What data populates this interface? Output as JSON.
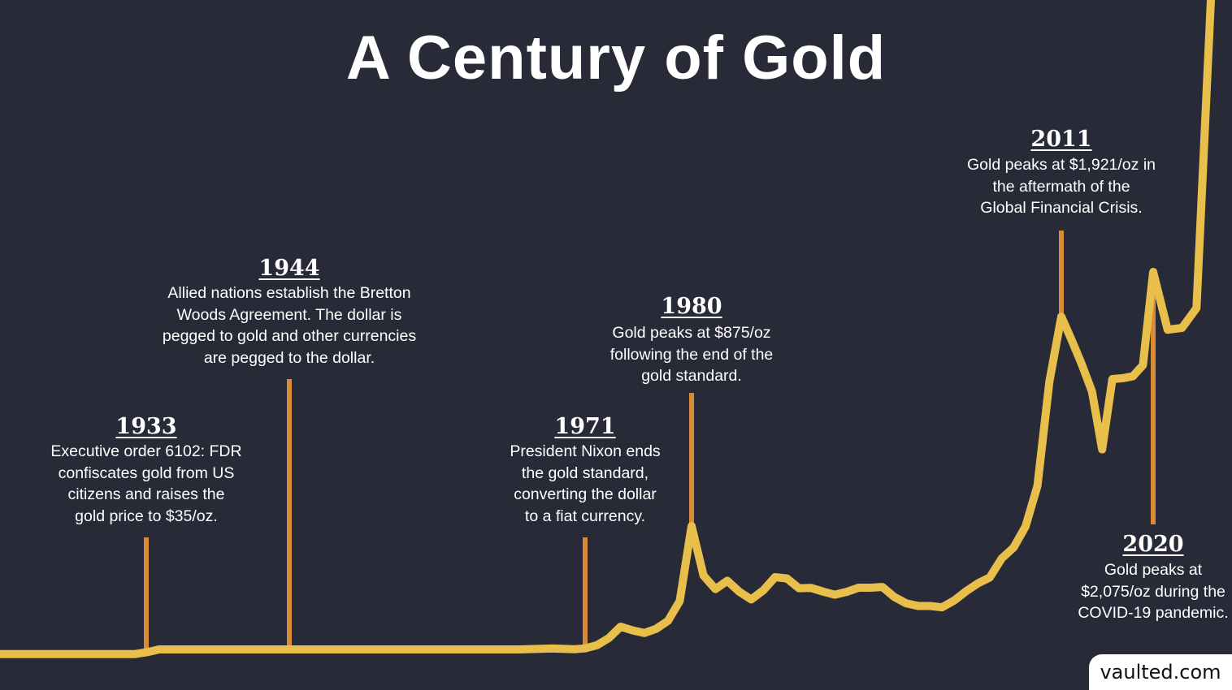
{
  "title": "A Century of Gold",
  "brand": "vaulted.com",
  "colors": {
    "background": "#282a37",
    "line": "#e8bf4a",
    "marker": "#d98a36",
    "text": "#ffffff"
  },
  "annotations": [
    {
      "year": "1933",
      "lines": [
        "Executive order 6102: FDR",
        "confiscates gold from US",
        "citizens and raises the",
        "gold price to $35/oz."
      ]
    },
    {
      "year": "1944",
      "lines": [
        "Allied nations establish the Bretton",
        "Woods Agreement. The dollar is",
        "pegged to gold and other currencies",
        "are pegged to the dollar."
      ]
    },
    {
      "year": "1971",
      "lines": [
        "President Nixon ends",
        "the gold standard,",
        "converting the dollar",
        "to a fiat currency."
      ]
    },
    {
      "year": "1980",
      "lines": [
        "Gold peaks at $875/oz",
        "following the end of the",
        "gold standard."
      ]
    },
    {
      "year": "2011",
      "lines": [
        "Gold peaks at $1,921/oz in",
        "the aftermath of the",
        "Global Financial Crisis."
      ]
    },
    {
      "year": "2020",
      "lines": [
        "Gold peaks at",
        "$2,075/oz during the",
        "COVID-19 pandemic."
      ]
    }
  ],
  "chart_data": {
    "type": "line",
    "title": "A Century of Gold",
    "xlabel": "",
    "ylabel": "",
    "unit": "USD/oz",
    "grid": false,
    "legend": "none",
    "series": [
      {
        "x": [
          1920,
          1932,
          1933,
          1934,
          1940,
          1944,
          1950,
          1960,
          1965,
          1968,
          1970,
          1971,
          1972,
          1973,
          1974,
          1975,
          1976,
          1977,
          1978,
          1979,
          1980,
          1981,
          1982,
          1983,
          1984,
          1985,
          1986,
          1987,
          1988,
          1989,
          1990,
          1991,
          1992,
          1993,
          1994,
          1995,
          1996,
          1997,
          1998,
          1999,
          2000,
          2001,
          2002,
          2003,
          2004,
          2005,
          2006,
          2007,
          2008,
          2009,
          2010,
          2011,
          2012,
          2013,
          2014,
          2015,
          2016,
          2017,
          2018,
          2019,
          2020,
          2021,
          2022,
          2023,
          2024
        ],
        "y": [
          20.67,
          20.67,
          26,
          35,
          35,
          35,
          35,
          35,
          35,
          40,
          36,
          41,
          58,
          97,
          160,
          140,
          125,
          148,
          193,
          307,
          875,
          460,
          376,
          424,
          361,
          317,
          368,
          447,
          437,
          381,
          383,
          362,
          344,
          360,
          384,
          384,
          388,
          331,
          294,
          279,
          279,
          271,
          310,
          363,
          409,
          444,
          603,
          695,
          872,
          972,
          1224,
          1921,
          1670,
          1410,
          1200,
          1060,
          1250,
          1260,
          1280,
          1400,
          2075,
          1780,
          1800,
          1950,
          2700
        ]
      }
    ],
    "markers": [
      1933,
      1944,
      1971,
      1980,
      2011,
      2020
    ]
  }
}
